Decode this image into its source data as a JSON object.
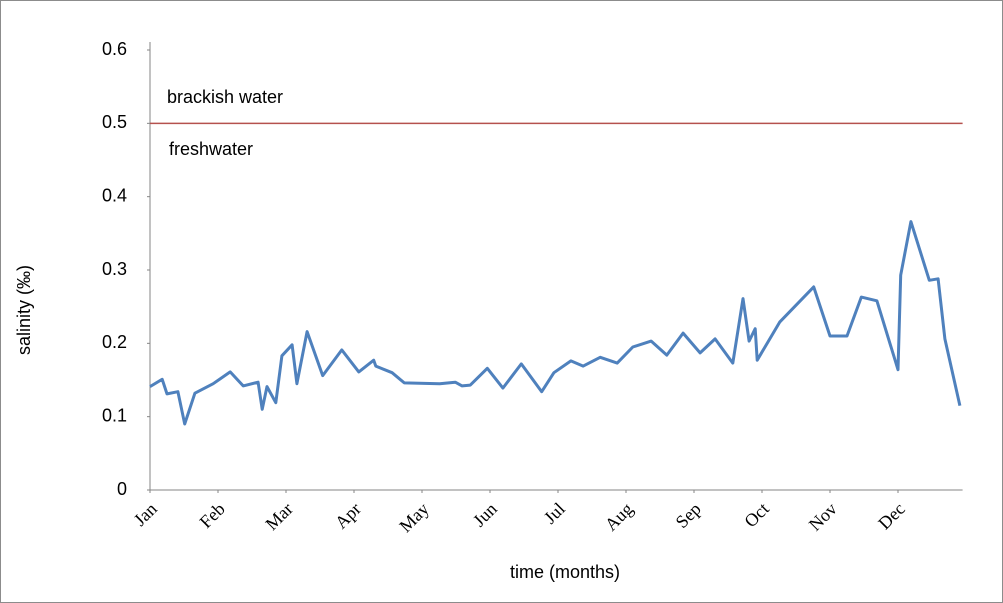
{
  "chart_data": {
    "type": "line",
    "ylabel": "salinity (‰)",
    "xlabel": "time (months)",
    "color": "#4f81bd",
    "threshold": {
      "value": 0.5,
      "color": "#b5514e"
    },
    "annotations": [
      "brackish water",
      "freshwater"
    ],
    "xlim": [
      0,
      11.95
    ],
    "ylim": [
      0,
      0.6
    ],
    "xticks": [
      {
        "value": 0,
        "label": "Jan"
      },
      {
        "value": 1,
        "label": "Feb"
      },
      {
        "value": 2,
        "label": "Mar"
      },
      {
        "value": 3,
        "label": "Apr"
      },
      {
        "value": 4,
        "label": "May"
      },
      {
        "value": 5,
        "label": "Jun"
      },
      {
        "value": 6,
        "label": "Jul"
      },
      {
        "value": 7,
        "label": "Aug"
      },
      {
        "value": 8,
        "label": "Sep"
      },
      {
        "value": 9,
        "label": "Oct"
      },
      {
        "value": 10,
        "label": "Nov"
      },
      {
        "value": 11,
        "label": "Dec"
      }
    ],
    "yticks": [
      0,
      0.1,
      0.2,
      0.3,
      0.4,
      0.5,
      0.6
    ],
    "x": [
      0,
      0.18,
      0.25,
      0.41,
      0.51,
      0.66,
      0.93,
      1.18,
      1.37,
      1.59,
      1.65,
      1.72,
      1.85,
      1.94,
      2.09,
      2.16,
      2.31,
      2.54,
      2.82,
      3.07,
      3.29,
      3.32,
      3.56,
      3.74,
      4.26,
      4.49,
      4.59,
      4.71,
      4.96,
      5.19,
      5.46,
      5.76,
      5.94,
      6.19,
      6.37,
      6.62,
      6.87,
      7.1,
      7.37,
      7.6,
      7.84,
      8.09,
      8.31,
      8.57,
      8.72,
      8.81,
      8.9,
      8.93,
      9.26,
      9.76,
      10.0,
      10.25,
      10.46,
      10.69,
      11.0,
      11.04,
      11.19,
      11.46,
      11.59,
      11.69,
      11.91
    ],
    "values": [
      0.141,
      0.151,
      0.131,
      0.134,
      0.09,
      0.132,
      0.145,
      0.161,
      0.142,
      0.147,
      0.11,
      0.141,
      0.119,
      0.183,
      0.198,
      0.145,
      0.216,
      0.156,
      0.191,
      0.161,
      0.177,
      0.169,
      0.16,
      0.146,
      0.145,
      0.147,
      0.142,
      0.143,
      0.166,
      0.139,
      0.172,
      0.134,
      0.16,
      0.176,
      0.169,
      0.181,
      0.173,
      0.195,
      0.203,
      0.184,
      0.214,
      0.187,
      0.206,
      0.173,
      0.261,
      0.203,
      0.22,
      0.177,
      0.229,
      0.277,
      0.21,
      0.21,
      0.263,
      0.258,
      0.164,
      0.293,
      0.366,
      0.286,
      0.288,
      0.206,
      0.115
    ]
  }
}
